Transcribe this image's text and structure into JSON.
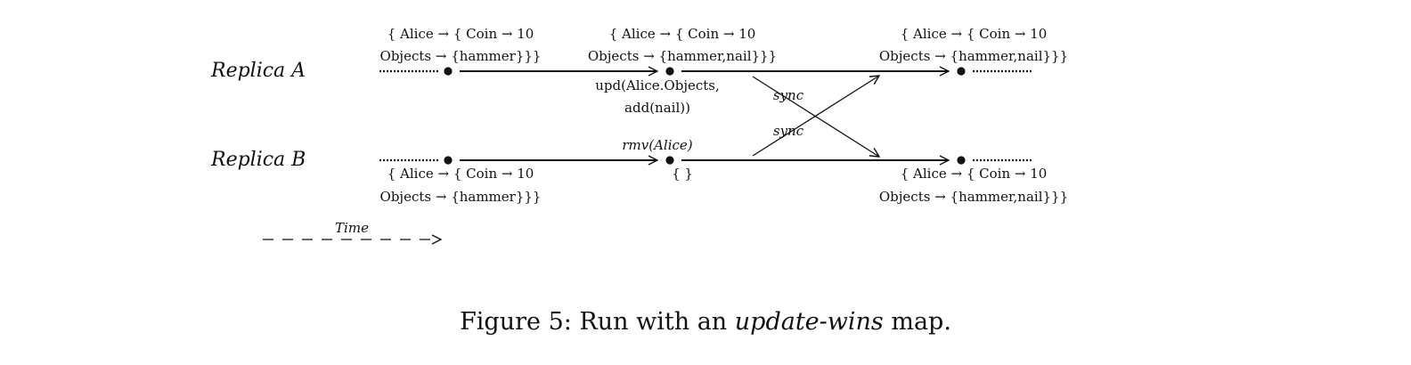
{
  "replicas": {
    "a": "Replica A",
    "b": "Replica B"
  },
  "states": {
    "a1": {
      "line1": "{ Alice → { Coin → 10",
      "line2": "Objects → {hammer}}}"
    },
    "a2": {
      "line1": "{ Alice → { Coin → 10",
      "line2": "Objects → {hammer,nail}}}"
    },
    "a3": {
      "line1": "{ Alice → { Coin → 10",
      "line2": "Objects → {hammer,nail}}}"
    },
    "b1": {
      "line1": "{ Alice → { Coin → 10",
      "line2": "Objects → {hammer}}}"
    },
    "b2": {
      "line1": "{ }"
    },
    "b3": {
      "line1": "{ Alice → { Coin → 10",
      "line2": "Objects → {hammer,nail}}}"
    }
  },
  "operations": {
    "upd_line1": "upd(Alice.Objects,",
    "upd_line2": "add(nail))",
    "rmv": "rmv(Alice)"
  },
  "sync_labels": [
    "sync",
    "sync"
  ],
  "time_label": "Time",
  "caption": {
    "prefix": "Figure 5: Run with an ",
    "emph": "update-wins",
    "suffix": " map."
  }
}
